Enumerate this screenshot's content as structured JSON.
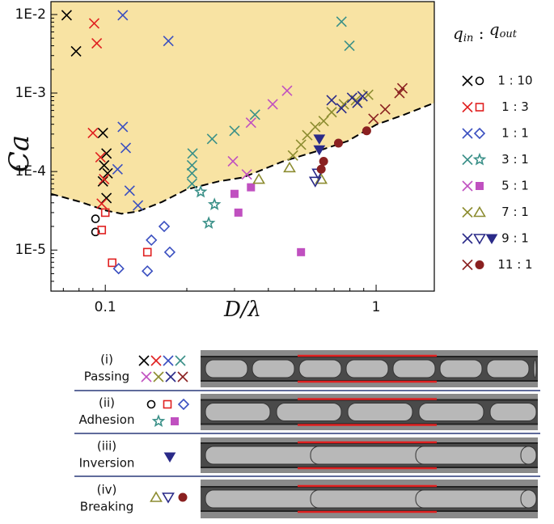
{
  "chart_data": {
    "type": "scatter",
    "log_x": true,
    "log_y": true,
    "xlabel": "D/λ",
    "ylabel": "Ca",
    "xlim": [
      0.063,
      1.64
    ],
    "ylim": [
      3e-06,
      0.0146
    ],
    "xticks": [
      0.1,
      1
    ],
    "yticks": [
      {
        "value": 1e-05,
        "label": "1E-5"
      },
      {
        "value": 0.0001,
        "label": "1E-4"
      },
      {
        "value": 0.001,
        "label": "1E-3"
      },
      {
        "value": 0.01,
        "label": "1E-2"
      }
    ],
    "legend_title": [
      "q",
      "in",
      " : ",
      "q",
      "out"
    ],
    "region_color": "#f8e3a3",
    "boundary": {
      "x": [
        0.063,
        0.081,
        0.1,
        0.115,
        0.132,
        0.162,
        0.199,
        0.262,
        0.322,
        0.454,
        0.64,
        0.786,
        1,
        1.27,
        1.64
      ],
      "y": [
        5.2e-05,
        4.1e-05,
        3.2e-05,
        2.9e-05,
        3.1e-05,
        4.1e-05,
        5.9e-05,
        7.5e-05,
        8.4e-05,
        0.000135,
        0.000193,
        0.000245,
        0.000395,
        0.00053,
        0.00075
      ]
    },
    "series": [
      {
        "name": "1 : 10",
        "color": "#000000",
        "groups": [
          {
            "marker": "cross",
            "x": [
              0.072,
              0.078,
              0.098,
              0.101,
              0.099,
              0.102,
              0.098,
              0.101
            ],
            "y": [
              0.0098,
              0.0034,
              0.00031,
              0.00017,
              0.00012,
              9.5e-05,
              7.5e-05,
              4.6e-05
            ]
          },
          {
            "marker": "circle",
            "x": [
              0.092,
              0.092
            ],
            "y": [
              2.5e-05,
              1.7e-05
            ]
          }
        ]
      },
      {
        "name": "1 : 3",
        "color": "#e02020",
        "groups": [
          {
            "marker": "cross",
            "x": [
              0.091,
              0.093,
              0.09,
              0.096,
              0.099,
              0.097
            ],
            "y": [
              0.0077,
              0.0043,
              0.00031,
              0.000152,
              8e-05,
              3.9e-05
            ]
          },
          {
            "marker": "square",
            "x": [
              0.1,
              0.097,
              0.106,
              0.143
            ],
            "y": [
              3e-05,
              1.8e-05,
              6.9e-06,
              9.4e-06
            ]
          }
        ]
      },
      {
        "name": "1 : 1",
        "color": "#3a4fc0",
        "groups": [
          {
            "marker": "cross",
            "x": [
              0.116,
              0.171,
              0.116,
              0.119,
              0.111,
              0.123,
              0.132
            ],
            "y": [
              0.0098,
              0.0046,
              0.00037,
              0.0002,
              0.000107,
              5.7e-05,
              3.7e-05
            ]
          },
          {
            "marker": "diamond",
            "x": [
              0.165,
              0.148,
              0.112,
              0.173,
              0.143
            ],
            "y": [
              2e-05,
              1.34e-05,
              5.8e-06,
              9.4e-06,
              5.4e-06
            ]
          }
        ]
      },
      {
        "name": "3 : 1",
        "color": "#3a9088",
        "groups": [
          {
            "marker": "cross",
            "x": [
              0.745,
              0.797,
              0.357,
              0.3,
              0.248,
              0.21,
              0.209,
              0.209,
              0.209
            ],
            "y": [
              0.0081,
              0.004,
              0.00053,
              0.00033,
              0.00026,
              0.00017,
              0.00012,
              9.5e-05,
              7e-05
            ]
          },
          {
            "marker": "star",
            "x": [
              0.225,
              0.253,
              0.241
            ],
            "y": [
              5.5e-05,
              3.8e-05,
              2.2e-05
            ]
          }
        ]
      },
      {
        "name": "5 : 1",
        "color": "#c050c0",
        "groups": [
          {
            "marker": "cross",
            "x": [
              0.469,
              0.415,
              0.345,
              0.296,
              0.333
            ],
            "y": [
              0.00107,
              0.00072,
              0.00042,
              0.000135,
              9.2e-05
            ]
          },
          {
            "marker": "square-filled",
            "x": [
              0.345,
              0.3,
              0.31,
              0.528
            ],
            "y": [
              6.3e-05,
              5.2e-05,
              3e-05,
              9.4e-06
            ]
          }
        ]
      },
      {
        "name": "7 : 1",
        "color": "#8c8c30",
        "groups": [
          {
            "marker": "cross",
            "x": [
              0.76,
              0.685,
              0.64,
              0.596,
              0.557,
              0.528,
              0.493,
              0.935,
              0.842
            ],
            "y": [
              0.00072,
              0.00057,
              0.00044,
              0.00037,
              0.00029,
              0.00022,
              0.00016,
              0.00095,
              0.00081
            ]
          },
          {
            "marker": "triangle",
            "x": [
              0.369,
              0.479,
              0.627
            ],
            "y": [
              8e-05,
              0.000112,
              8e-05
            ]
          }
        ]
      },
      {
        "name": "9 : 1",
        "color": "#2a2a88",
        "groups": [
          {
            "marker": "cross",
            "x": [
              0.685,
              0.745,
              0.815,
              0.853,
              0.891
            ],
            "y": [
              0.00081,
              0.00064,
              0.00087,
              0.00075,
              0.00091
            ]
          },
          {
            "marker": "triangle-down",
            "x": [
              0.596,
              0.61
            ],
            "y": [
              7.5e-05,
              9.5e-05
            ]
          },
          {
            "marker": "triangle-down-filled",
            "x": [
              0.617,
              0.617
            ],
            "y": [
              0.00026,
              0.000189
            ]
          }
        ]
      },
      {
        "name": "11 : 1",
        "color": "#8a2020",
        "groups": [
          {
            "marker": "cross",
            "x": [
              0.978,
              1.08,
              1.22,
              1.25
            ],
            "y": [
              0.00047,
              0.00062,
              0.001,
              0.00115
            ]
          },
          {
            "marker": "circle-filled",
            "x": [
              0.64,
              0.627,
              0.726,
              0.923
            ],
            "y": [
              0.000135,
              0.000107,
              0.00023,
              0.00033
            ]
          }
        ]
      }
    ]
  },
  "panels": [
    {
      "id": "(i)",
      "label": "Passing"
    },
    {
      "id": "(ii)",
      "label": "Adhesion"
    },
    {
      "id": "(iii)",
      "label": "Inversion"
    },
    {
      "id": "(iv)",
      "label": "Breaking"
    }
  ]
}
